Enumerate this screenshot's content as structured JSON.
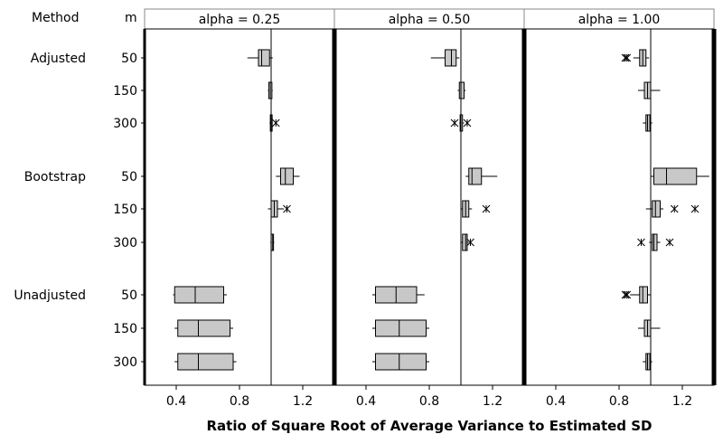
{
  "chart_data": {
    "type": "boxplot",
    "header": {
      "method_label": "Method",
      "m_label": "m"
    },
    "xlabel": "Ratio of Square Root of Average Variance to Estimated SD",
    "xlim": [
      0.2,
      1.4
    ],
    "xticks": [
      0.4,
      0.8,
      1.2
    ],
    "xtick_labels": [
      "0.4",
      "0.8",
      "1.2"
    ],
    "reference_line": 1.0,
    "groups": [
      {
        "method": "Adjusted",
        "rows": [
          "50",
          "150",
          "300"
        ]
      },
      {
        "method": "Bootstrap",
        "rows": [
          "50",
          "150",
          "300"
        ]
      },
      {
        "method": "Unadjusted",
        "rows": [
          "50",
          "150",
          "300"
        ]
      }
    ],
    "panels": [
      {
        "title": "alpha = 0.25",
        "boxes": [
          {
            "method": "Adjusted",
            "m": "50",
            "wlo": 0.85,
            "q1": 0.92,
            "med": 0.94,
            "q3": 0.99,
            "whi": 1.01,
            "outliers": []
          },
          {
            "method": "Adjusted",
            "m": "150",
            "wlo": 0.98,
            "q1": 0.985,
            "med": 0.995,
            "q3": 1.005,
            "whi": 1.01,
            "outliers": []
          },
          {
            "method": "Adjusted",
            "m": "300",
            "wlo": 0.99,
            "q1": 0.995,
            "med": 1.0,
            "q3": 1.005,
            "whi": 1.01,
            "outliers": [
              1.03
            ]
          },
          {
            "method": "Bootstrap",
            "m": "50",
            "wlo": 1.03,
            "q1": 1.06,
            "med": 1.09,
            "q3": 1.14,
            "whi": 1.18,
            "outliers": []
          },
          {
            "method": "Bootstrap",
            "m": "150",
            "wlo": 0.98,
            "q1": 1.0,
            "med": 1.02,
            "q3": 1.04,
            "whi": 1.08,
            "outliers": [
              1.1
            ]
          },
          {
            "method": "Bootstrap",
            "m": "300",
            "wlo": 0.995,
            "q1": 1.0,
            "med": 1.01,
            "q3": 1.015,
            "whi": 1.02,
            "outliers": []
          },
          {
            "method": "Unadjusted",
            "m": "50",
            "wlo": 0.38,
            "q1": 0.39,
            "med": 0.52,
            "q3": 0.7,
            "whi": 0.72,
            "outliers": []
          },
          {
            "method": "Unadjusted",
            "m": "150",
            "wlo": 0.39,
            "q1": 0.41,
            "med": 0.54,
            "q3": 0.74,
            "whi": 0.76,
            "outliers": []
          },
          {
            "method": "Unadjusted",
            "m": "300",
            "wlo": 0.39,
            "q1": 0.41,
            "med": 0.54,
            "q3": 0.76,
            "whi": 0.78,
            "outliers": []
          }
        ]
      },
      {
        "title": "alpha = 0.50",
        "boxes": [
          {
            "method": "Adjusted",
            "m": "50",
            "wlo": 0.81,
            "q1": 0.9,
            "med": 0.94,
            "q3": 0.97,
            "whi": 0.99,
            "outliers": []
          },
          {
            "method": "Adjusted",
            "m": "150",
            "wlo": 0.98,
            "q1": 0.99,
            "med": 1.0,
            "q3": 1.02,
            "whi": 1.03,
            "outliers": []
          },
          {
            "method": "Adjusted",
            "m": "300",
            "wlo": 0.99,
            "q1": 0.995,
            "med": 1.0,
            "q3": 1.01,
            "whi": 1.02,
            "outliers": [
              0.96,
              1.04
            ]
          },
          {
            "method": "Bootstrap",
            "m": "50",
            "wlo": 1.03,
            "q1": 1.05,
            "med": 1.07,
            "q3": 1.13,
            "whi": 1.23,
            "outliers": []
          },
          {
            "method": "Bootstrap",
            "m": "150",
            "wlo": 1.0,
            "q1": 1.01,
            "med": 1.03,
            "q3": 1.05,
            "whi": 1.07,
            "outliers": [
              1.16
            ]
          },
          {
            "method": "Bootstrap",
            "m": "300",
            "wlo": 1.0,
            "q1": 1.01,
            "med": 1.03,
            "q3": 1.04,
            "whi": 1.05,
            "outliers": [
              1.06
            ]
          },
          {
            "method": "Unadjusted",
            "m": "50",
            "wlo": 0.44,
            "q1": 0.46,
            "med": 0.59,
            "q3": 0.72,
            "whi": 0.77,
            "outliers": []
          },
          {
            "method": "Unadjusted",
            "m": "150",
            "wlo": 0.44,
            "q1": 0.46,
            "med": 0.61,
            "q3": 0.78,
            "whi": 0.8,
            "outliers": []
          },
          {
            "method": "Unadjusted",
            "m": "300",
            "wlo": 0.44,
            "q1": 0.46,
            "med": 0.61,
            "q3": 0.78,
            "whi": 0.8,
            "outliers": []
          }
        ]
      },
      {
        "title": "alpha = 1.00",
        "boxes": [
          {
            "method": "Adjusted",
            "m": "50",
            "wlo": 0.89,
            "q1": 0.93,
            "med": 0.95,
            "q3": 0.97,
            "whi": 0.99,
            "outliers": [
              0.84,
              0.85
            ]
          },
          {
            "method": "Adjusted",
            "m": "150",
            "wlo": 0.92,
            "q1": 0.96,
            "med": 0.98,
            "q3": 1.0,
            "whi": 1.06,
            "outliers": []
          },
          {
            "method": "Adjusted",
            "m": "300",
            "wlo": 0.95,
            "q1": 0.97,
            "med": 0.98,
            "q3": 0.995,
            "whi": 1.01,
            "outliers": []
          },
          {
            "method": "Bootstrap",
            "m": "50",
            "wlo": 1.0,
            "q1": 1.02,
            "med": 1.1,
            "q3": 1.29,
            "whi": 1.37,
            "outliers": []
          },
          {
            "method": "Bootstrap",
            "m": "150",
            "wlo": 0.97,
            "q1": 1.01,
            "med": 1.03,
            "q3": 1.06,
            "whi": 1.08,
            "outliers": [
              1.15,
              1.28
            ]
          },
          {
            "method": "Bootstrap",
            "m": "300",
            "wlo": 0.99,
            "q1": 1.01,
            "med": 1.02,
            "q3": 1.04,
            "whi": 1.06,
            "outliers": [
              0.94,
              1.12
            ]
          },
          {
            "method": "Unadjusted",
            "m": "50",
            "wlo": 0.87,
            "q1": 0.93,
            "med": 0.95,
            "q3": 0.98,
            "whi": 1.0,
            "outliers": [
              0.84,
              0.85
            ]
          },
          {
            "method": "Unadjusted",
            "m": "150",
            "wlo": 0.92,
            "q1": 0.96,
            "med": 0.98,
            "q3": 1.0,
            "whi": 1.06,
            "outliers": []
          },
          {
            "method": "Unadjusted",
            "m": "300",
            "wlo": 0.95,
            "q1": 0.97,
            "med": 0.98,
            "q3": 0.995,
            "whi": 1.01,
            "outliers": []
          }
        ]
      }
    ]
  },
  "colors": {
    "box_fill": "#c8c8c8",
    "line": "#000000",
    "strip_fill": "#ffffff"
  }
}
